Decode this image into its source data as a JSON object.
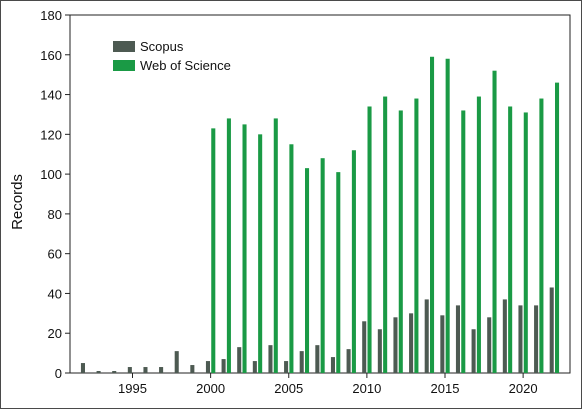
{
  "chart_data": {
    "type": "bar",
    "title": "",
    "xlabel": "",
    "ylabel": "Records",
    "ylim": [
      0,
      180
    ],
    "yticks": [
      0,
      20,
      40,
      60,
      80,
      100,
      120,
      140,
      160,
      180
    ],
    "xticks": [
      1995,
      2000,
      2005,
      2010,
      2015,
      2020
    ],
    "categories": [
      1992,
      1993,
      1994,
      1995,
      1996,
      1997,
      1998,
      1999,
      2000,
      2001,
      2002,
      2003,
      2004,
      2005,
      2006,
      2007,
      2008,
      2009,
      2010,
      2011,
      2012,
      2013,
      2014,
      2015,
      2016,
      2017,
      2018,
      2019,
      2020,
      2021,
      2022
    ],
    "grid": false,
    "legend_position": "top-left",
    "series": [
      {
        "name": "Scopus",
        "color": "#4d5a52",
        "values": [
          5,
          1,
          1,
          3,
          3,
          3,
          11,
          4,
          6,
          7,
          13,
          6,
          14,
          6,
          11,
          14,
          8,
          12,
          26,
          22,
          28,
          30,
          37,
          29,
          34,
          22,
          28,
          37,
          34,
          34,
          43
        ]
      },
      {
        "name": "Web of Science",
        "color": "#1a9a45",
        "values": [
          0,
          0,
          0,
          0,
          0,
          0,
          0,
          0,
          123,
          128,
          125,
          120,
          128,
          115,
          103,
          108,
          101,
          112,
          134,
          139,
          132,
          138,
          159,
          158,
          132,
          139,
          152,
          134,
          131,
          138,
          146
        ]
      }
    ]
  }
}
